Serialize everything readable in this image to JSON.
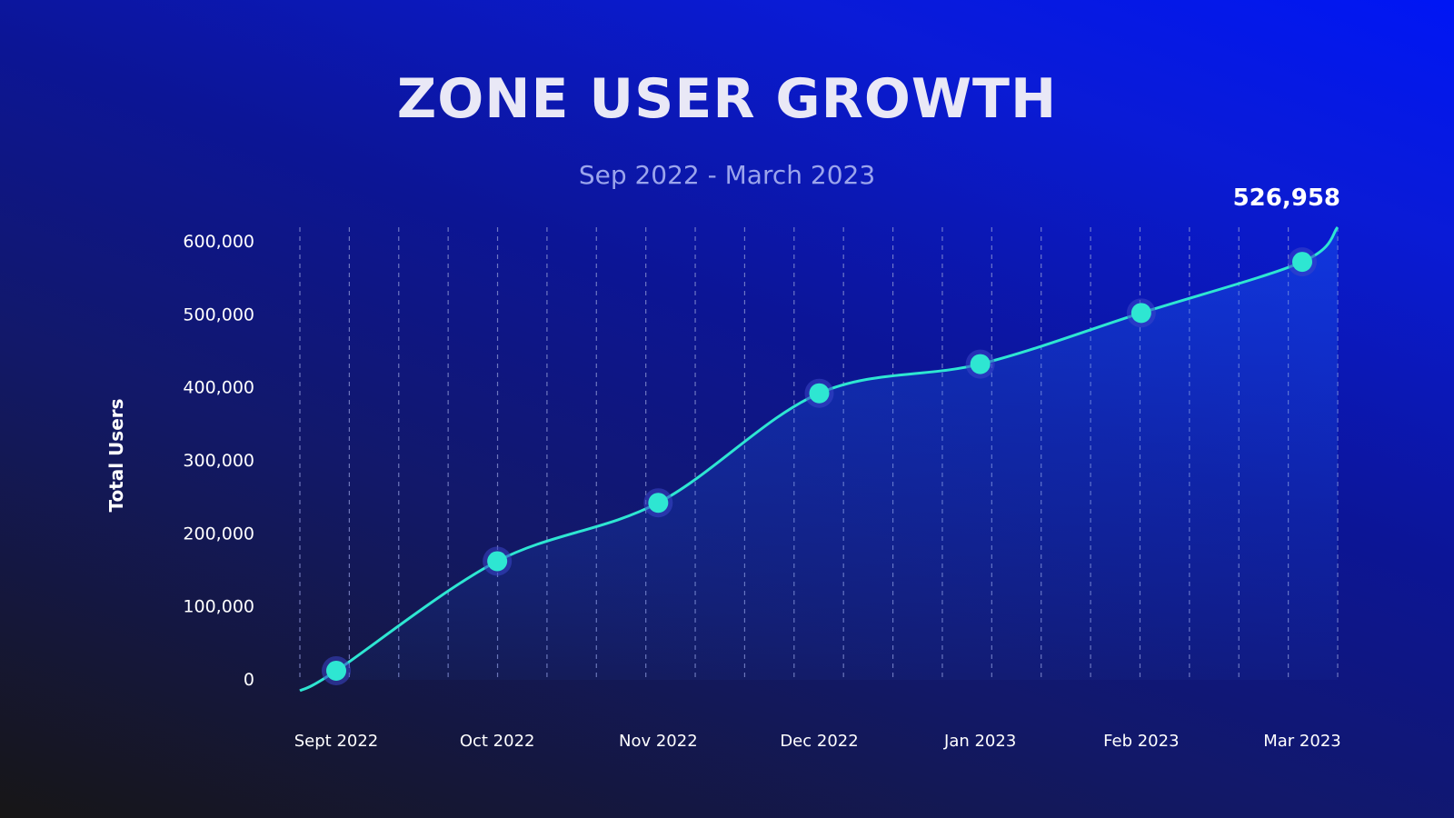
{
  "chart_data": {
    "type": "area",
    "title": "ZONE USER GROWTH",
    "subtitle": "Sep 2022 - March 2023",
    "xlabel": "",
    "ylabel": "Total Users",
    "categories": [
      "Sept 2022",
      "Oct 2022",
      "Nov 2022",
      "Dec 2022",
      "Jan 2023",
      "Feb 2023",
      "Mar 2023"
    ],
    "values": [
      10000,
      160000,
      240000,
      390000,
      430000,
      500000,
      570000
    ],
    "ylim": [
      0,
      600000
    ],
    "yticks": [
      0,
      100000,
      200000,
      300000,
      400000,
      500000,
      600000
    ],
    "ytick_labels": [
      "0",
      "100,000",
      "200,000",
      "300,000",
      "400,000",
      "500,000",
      "600,000"
    ],
    "annotation": "526,958",
    "grid": true,
    "colors": {
      "line": "#2ee6d2",
      "marker": "#2ee6d2",
      "area": "#1e6cff",
      "grid": "#8f97d6"
    }
  }
}
